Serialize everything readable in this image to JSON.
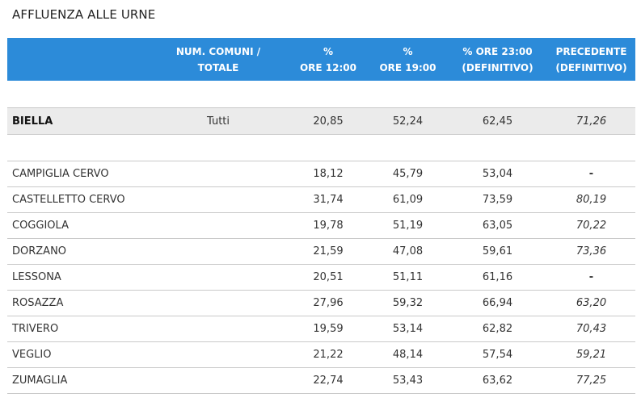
{
  "title": "AFFLUENZA ALLE URNE",
  "headers": {
    "name": "",
    "comuni_line1": "NUM. COMUNI /",
    "comuni_line2": "TOTALE",
    "h12_line1": "%",
    "h12_line2": "ORE 12:00",
    "h19_line1": "%",
    "h19_line2": "ORE 19:00",
    "h23_line1": "% ORE 23:00",
    "h23_line2": "(DEFINITIVO)",
    "prec_line1": "PRECEDENTE",
    "prec_line2": "(DEFINITIVO)"
  },
  "total": {
    "name": "BIELLA",
    "comuni": "Tutti",
    "ore12": "20,85",
    "ore19": "52,24",
    "ore23": "62,45",
    "precedente": "71,26"
  },
  "rows": [
    {
      "name": "CAMPIGLIA CERVO",
      "comuni": "",
      "ore12": "18,12",
      "ore19": "45,79",
      "ore23": "53,04",
      "precedente": "-"
    },
    {
      "name": "CASTELLETTO CERVO",
      "comuni": "",
      "ore12": "31,74",
      "ore19": "61,09",
      "ore23": "73,59",
      "precedente": "80,19"
    },
    {
      "name": "COGGIOLA",
      "comuni": "",
      "ore12": "19,78",
      "ore19": "51,19",
      "ore23": "63,05",
      "precedente": "70,22"
    },
    {
      "name": "DORZANO",
      "comuni": "",
      "ore12": "21,59",
      "ore19": "47,08",
      "ore23": "59,61",
      "precedente": "73,36"
    },
    {
      "name": "LESSONA",
      "comuni": "",
      "ore12": "20,51",
      "ore19": "51,11",
      "ore23": "61,16",
      "precedente": "-"
    },
    {
      "name": "ROSAZZA",
      "comuni": "",
      "ore12": "27,96",
      "ore19": "59,32",
      "ore23": "66,94",
      "precedente": "63,20"
    },
    {
      "name": "TRIVERO",
      "comuni": "",
      "ore12": "19,59",
      "ore19": "53,14",
      "ore23": "62,82",
      "precedente": "70,43"
    },
    {
      "name": "VEGLIO",
      "comuni": "",
      "ore12": "21,22",
      "ore19": "48,14",
      "ore23": "57,54",
      "precedente": "59,21"
    },
    {
      "name": "ZUMAGLIA",
      "comuni": "",
      "ore12": "22,74",
      "ore19": "53,43",
      "ore23": "63,62",
      "precedente": "77,25"
    }
  ],
  "colors": {
    "header_bg": "#2c8bd9",
    "header_text": "#ffffff",
    "total_row_bg": "#ebebeb",
    "row_divider": "#c9c9c9"
  }
}
